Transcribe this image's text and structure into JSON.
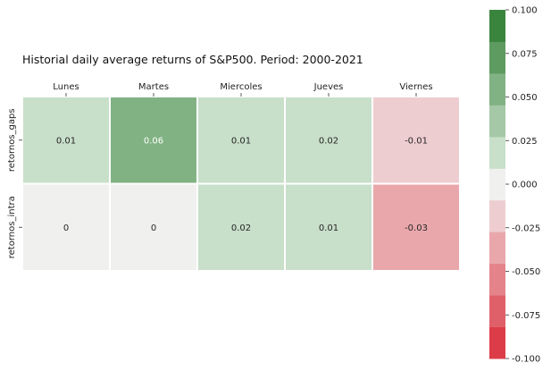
{
  "chart_data": {
    "type": "heatmap",
    "title": "Historial daily average returns of S&P500. Period: 2000-2021",
    "x_categories": [
      "Lunes",
      "Martes",
      "Miercoles",
      "Jueves",
      "Viernes"
    ],
    "y_categories": [
      "retornos_gaps",
      "retornos_intra"
    ],
    "values": [
      [
        0.01,
        0.06,
        0.01,
        0.02,
        -0.01
      ],
      [
        0,
        0,
        0.02,
        0.01,
        -0.03
      ]
    ],
    "cell_labels": [
      [
        "0.01",
        "0.06",
        "0.01",
        "0.02",
        "-0.01"
      ],
      [
        "0",
        "0",
        "0.02",
        "0.01",
        "-0.03"
      ]
    ],
    "x_axis_position": "top",
    "colorbar": {
      "range": [
        -0.1,
        0.1
      ],
      "ticks": [
        "-0.100",
        "-0.075",
        "-0.050",
        "-0.025",
        "0.000",
        "0.025",
        "0.050",
        "0.075",
        "0.100"
      ],
      "tick_values": [
        -0.1,
        -0.075,
        -0.05,
        -0.025,
        0,
        0.025,
        0.05,
        0.075,
        0.1
      ],
      "colors": [
        "#dc3c47",
        "#e0606a",
        "#e5838a",
        "#e9a7ac",
        "#eecdd0",
        "#f0f1ef",
        "#c8dfc9",
        "#a5c8a6",
        "#81b283",
        "#5d9b60",
        "#3a853d"
      ]
    },
    "grid": false
  }
}
